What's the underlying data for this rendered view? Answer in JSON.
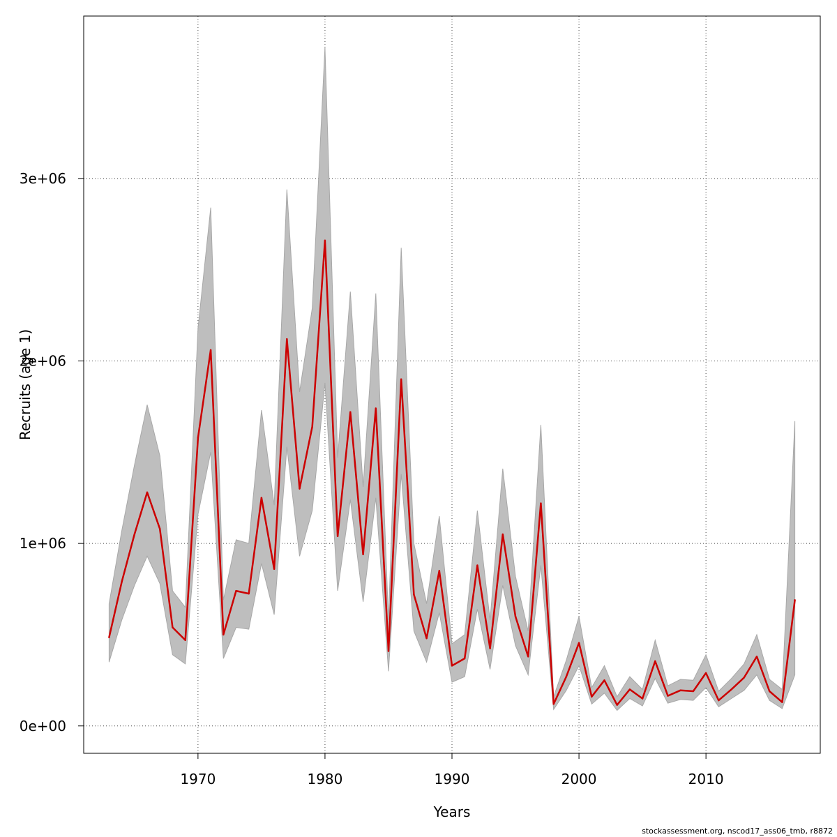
{
  "chart_data": {
    "type": "line",
    "title": "",
    "xlabel": "Years",
    "ylabel": "Recruits (age 1)",
    "xlim": [
      1961,
      2019
    ],
    "ylim": [
      -150000,
      3890000
    ],
    "x_ticks": [
      1970,
      1980,
      1990,
      2000,
      2010
    ],
    "x_tick_labels": [
      "1970",
      "1980",
      "1990",
      "2000",
      "2010"
    ],
    "y_ticks": [
      0,
      1000000,
      2000000,
      3000000
    ],
    "y_tick_labels": [
      "0e+00",
      "1e+06",
      "2e+06",
      "3e+06"
    ],
    "grid": true,
    "legend": "none",
    "colors": {
      "estimate": "#cc0000",
      "band": "#bebebe",
      "grid": "#444444"
    },
    "series": [
      {
        "x": [
          1963,
          1964,
          1965,
          1966,
          1967,
          1968,
          1969,
          1970,
          1971,
          1972,
          1973,
          1974,
          1975,
          1976,
          1977,
          1978,
          1979,
          1980,
          1981,
          1982,
          1983,
          1984,
          1985,
          1986,
          1987,
          1988,
          1989,
          1990,
          1991,
          1992,
          1993,
          1994,
          1995,
          1996,
          1997,
          1998,
          1999,
          2000,
          2001,
          2002,
          2003,
          2004,
          2005,
          2006,
          2007,
          2008,
          2009,
          2010,
          2011,
          2012,
          2013,
          2014,
          2015,
          2016,
          2017
        ],
        "estimate": [
          485000,
          790000,
          1050000,
          1280000,
          1080000,
          540000,
          470000,
          1580000,
          2060000,
          500000,
          740000,
          725000,
          1250000,
          860000,
          2120000,
          1300000,
          1640000,
          2660000,
          1040000,
          1720000,
          940000,
          1740000,
          410000,
          1900000,
          720000,
          480000,
          850000,
          330000,
          370000,
          880000,
          425000,
          1050000,
          600000,
          380000,
          1220000,
          120000,
          270000,
          455000,
          160000,
          250000,
          115000,
          200000,
          150000,
          355000,
          165000,
          195000,
          190000,
          290000,
          140000,
          200000,
          265000,
          380000,
          190000,
          130000,
          690000
        ],
        "lower": [
          350000,
          580000,
          770000,
          930000,
          780000,
          390000,
          340000,
          1160000,
          1500000,
          370000,
          540000,
          530000,
          890000,
          610000,
          1530000,
          930000,
          1180000,
          1880000,
          740000,
          1240000,
          680000,
          1250000,
          300000,
          1380000,
          520000,
          350000,
          620000,
          240000,
          270000,
          640000,
          310000,
          770000,
          440000,
          280000,
          880000,
          90000,
          195000,
          330000,
          120000,
          180000,
          85000,
          150000,
          110000,
          260000,
          125000,
          145000,
          140000,
          210000,
          105000,
          150000,
          195000,
          280000,
          140000,
          95000,
          280000
        ],
        "upper": [
          670000,
          1070000,
          1430000,
          1760000,
          1480000,
          740000,
          650000,
          2180000,
          2840000,
          690000,
          1020000,
          1000000,
          1730000,
          1210000,
          2940000,
          1830000,
          2290000,
          3720000,
          1470000,
          2380000,
          1310000,
          2370000,
          580000,
          2620000,
          1000000,
          670000,
          1150000,
          450000,
          500000,
          1180000,
          580000,
          1410000,
          820000,
          520000,
          1650000,
          160000,
          360000,
          600000,
          210000,
          330000,
          160000,
          270000,
          200000,
          470000,
          220000,
          255000,
          250000,
          390000,
          190000,
          260000,
          340000,
          500000,
          255000,
          200000,
          1670000
        ]
      }
    ]
  },
  "footer": {
    "credit": "stockassessment.org, nscod17_ass06_tmb, r8872"
  }
}
